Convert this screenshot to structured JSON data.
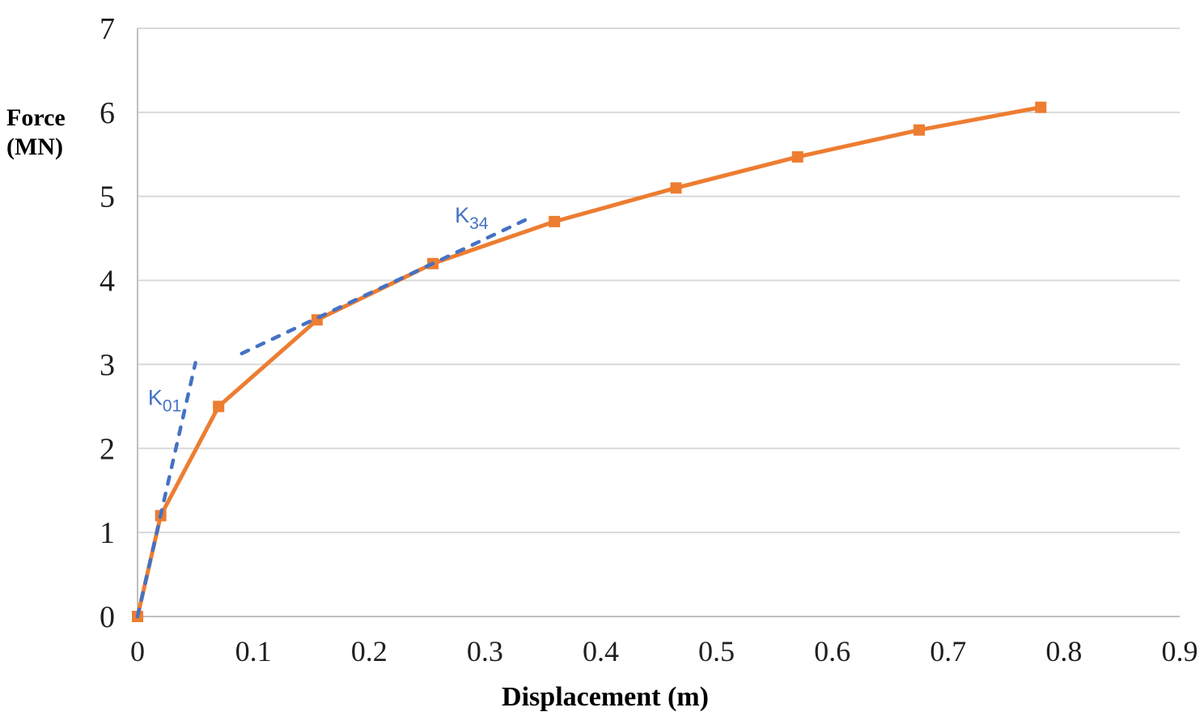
{
  "chart_data": {
    "type": "line",
    "title": "",
    "xlabel": "Displacement (m)",
    "ylabel": "Force (MN)",
    "ylabel_lines": [
      "Force",
      "(MN)"
    ],
    "xlim": [
      0,
      0.9
    ],
    "ylim": [
      0,
      7
    ],
    "grid": "horizontal-only",
    "legend": "none",
    "x_ticks": {
      "values": [
        0,
        0.1,
        0.2,
        0.3,
        0.4,
        0.5,
        0.6,
        0.7,
        0.8,
        0.9
      ],
      "labels": [
        "0",
        "0.1",
        "0.2",
        "0.3",
        "0.4",
        "0.5",
        "0.6",
        "0.7",
        "0.8",
        "0.9"
      ]
    },
    "y_ticks": {
      "values": [
        0,
        1,
        2,
        3,
        4,
        5,
        6,
        7
      ],
      "labels": [
        "0",
        "1",
        "2",
        "3",
        "4",
        "5",
        "6",
        "7"
      ]
    },
    "series": [
      {
        "name": "force-displacement-curve",
        "style": "solid-line-with-square-markers",
        "color": "#ED7D31",
        "x": [
          0,
          0.02,
          0.07,
          0.155,
          0.255,
          0.36,
          0.465,
          0.57,
          0.675,
          0.78
        ],
        "y": [
          0,
          1.2,
          2.5,
          3.53,
          4.2,
          4.7,
          5.1,
          5.47,
          5.79,
          6.06
        ]
      },
      {
        "name": "k01-stiffness-line",
        "style": "dashed-line",
        "color": "#4472C4",
        "x": [
          0,
          0.05
        ],
        "y": [
          0,
          3.02
        ]
      },
      {
        "name": "k34-stiffness-line",
        "style": "dashed-line",
        "color": "#4472C4",
        "x": [
          0.09,
          0.335
        ],
        "y": [
          3.13,
          4.72
        ]
      }
    ],
    "annotations": [
      {
        "name": "k01-label",
        "base": "K",
        "sub": "01",
        "x": 0.009,
        "y": 2.52,
        "color": "#4472C4"
      },
      {
        "name": "k34-label",
        "base": "K",
        "sub": "34",
        "x": 0.274,
        "y": 4.69,
        "color": "#4472C4"
      }
    ],
    "colors": {
      "curve": "#ED7D31",
      "dashed": "#4472C4",
      "gridline": "#D9D9D9",
      "axis_line": "#BFBFBF",
      "tick_text": "#1f1f1f",
      "background": "#FFFFFF"
    }
  }
}
